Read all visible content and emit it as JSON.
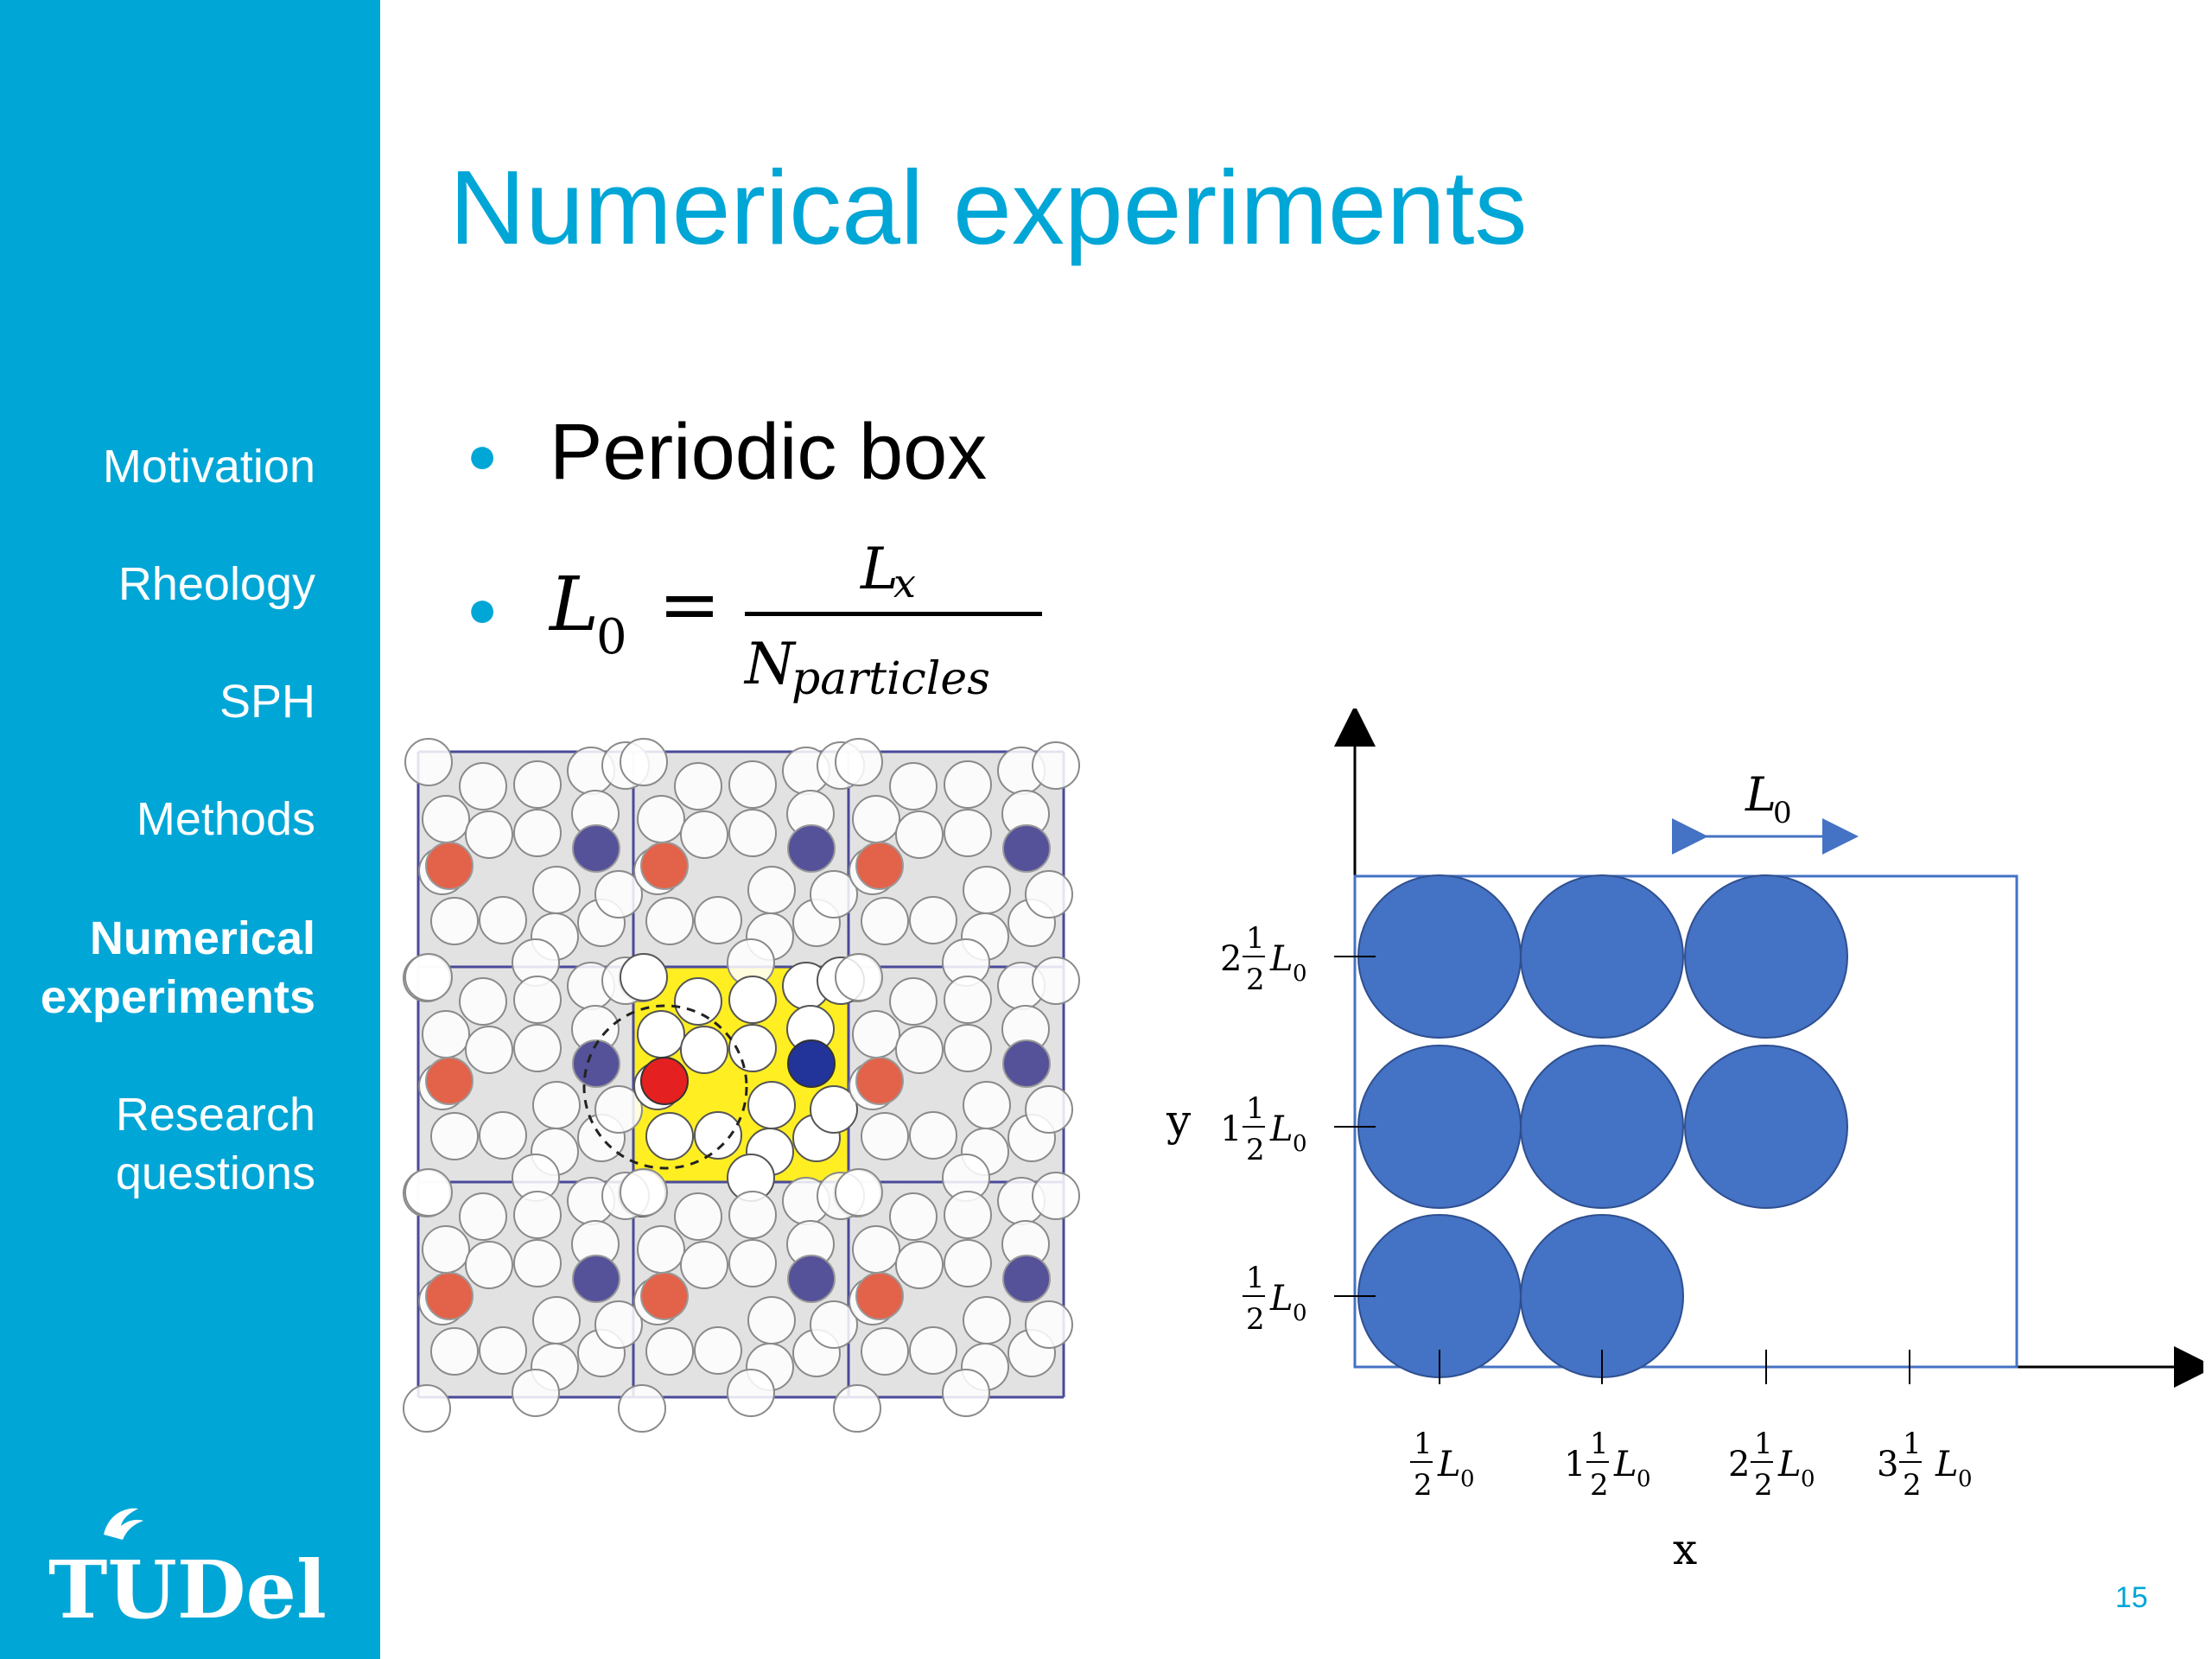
{
  "slide": {
    "title": "Numerical experiments",
    "page_number": "15",
    "accent_color": "#00a6d6"
  },
  "sidebar": {
    "items": [
      {
        "label": "Motivation",
        "active": false
      },
      {
        "label": "Rheology",
        "active": false
      },
      {
        "label": "SPH",
        "active": false
      },
      {
        "label": "Methods",
        "active": false
      },
      {
        "label": "Numerical experiments",
        "label_line1": "Numerical",
        "label_line2": "experiments",
        "active": true
      },
      {
        "label": "Research questions",
        "label_line1": "Research",
        "label_line2": "questions",
        "active": false
      }
    ],
    "logo_text": "TUDelft"
  },
  "bullets": [
    {
      "text": "Periodic box"
    },
    {
      "formula": {
        "lhs": "L",
        "lhs_sub": "0",
        "num": "L",
        "num_sub": "x",
        "den": "N",
        "den_sub": "particles"
      }
    }
  ],
  "diagram": {
    "top_label": {
      "main": "L",
      "sub": "0"
    },
    "axis_x_label": "x",
    "axis_y_label": "y",
    "y_ticks": [
      {
        "whole": "2",
        "frac_num": "1",
        "frac_den": "2",
        "unit": "L",
        "unit_sub": "0"
      },
      {
        "whole": "1",
        "frac_num": "1",
        "frac_den": "2",
        "unit": "L",
        "unit_sub": "0"
      },
      {
        "whole": "",
        "frac_num": "1",
        "frac_den": "2",
        "unit": "L",
        "unit_sub": "0"
      }
    ],
    "x_ticks": [
      {
        "whole": "",
        "frac_num": "1",
        "frac_den": "2",
        "unit": "L",
        "unit_sub": "0"
      },
      {
        "whole": "1",
        "frac_num": "1",
        "frac_den": "2",
        "unit": "L",
        "unit_sub": "0"
      },
      {
        "whole": "2",
        "frac_num": "1",
        "frac_den": "2",
        "unit": "L",
        "unit_sub": "0"
      },
      {
        "whole": "3",
        "frac_num": "1",
        "frac_den": "2",
        "unit": "L",
        "unit_sub": "0"
      }
    ],
    "particle_color": "#4472c4"
  }
}
